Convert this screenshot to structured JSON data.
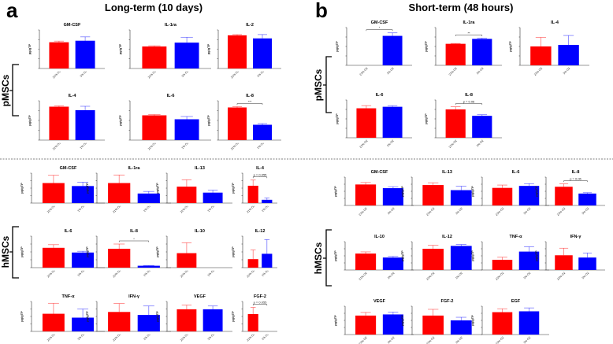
{
  "panel_a": {
    "letter": "a",
    "title": "Long-term (10 days)"
  },
  "panel_b": {
    "letter": "b",
    "title": "Short-term (48 hours)"
  },
  "groups": {
    "pmsc": "pMSCs",
    "hmsc": "hMSCs"
  },
  "colors": {
    "normoxia": "#ff0000",
    "hypoxia": "#0000ff"
  },
  "chart_data": {
    "type": "bar",
    "note": "values are fractions of each subplot's y-axis maximum (tick labels illegible)",
    "ylabel": "pg/gTP",
    "categories_a": [
      "21% O₂",
      "1% O₂"
    ],
    "categories_b": [
      "21% O2",
      "1% O2"
    ],
    "ylim": [
      0,
      1
    ],
    "panels": [
      {
        "panel": "a",
        "group": "pMSCs",
        "title": "GM-CSF",
        "values": [
          0.68,
          0.72
        ],
        "errors": [
          0.03,
          0.1
        ],
        "sig": ""
      },
      {
        "panel": "a",
        "group": "pMSCs",
        "title": "IL-1ra",
        "values": [
          0.57,
          0.67
        ],
        "errors": [
          0.02,
          0.14
        ],
        "sig": ""
      },
      {
        "panel": "a",
        "group": "pMSCs",
        "title": "IL-2",
        "values": [
          0.86,
          0.78
        ],
        "errors": [
          0.02,
          0.1
        ],
        "sig": ""
      },
      {
        "panel": "a",
        "group": "pMSCs",
        "title": "IL-4",
        "values": [
          0.85,
          0.76
        ],
        "errors": [
          0.02,
          0.1
        ],
        "sig": ""
      },
      {
        "panel": "a",
        "group": "pMSCs",
        "title": "IL-6",
        "values": [
          0.63,
          0.53
        ],
        "errors": [
          0.02,
          0.07
        ],
        "sig": ""
      },
      {
        "panel": "a",
        "group": "pMSCs",
        "title": "IL-8",
        "values": [
          0.83,
          0.39
        ],
        "errors": [
          0.02,
          0.03
        ],
        "sig": "***"
      },
      {
        "panel": "b",
        "group": "pMSCs",
        "title": "GM-CSF",
        "values": [
          0.0,
          0.78
        ],
        "errors": [
          0,
          0.08
        ],
        "sig": "*"
      },
      {
        "panel": "b",
        "group": "pMSCs",
        "title": "IL-1ra",
        "values": [
          0.57,
          0.7
        ],
        "errors": [
          0.01,
          0.02
        ],
        "sig": "**"
      },
      {
        "panel": "b",
        "group": "pMSCs",
        "title": "IL-4",
        "values": [
          0.5,
          0.54
        ],
        "errors": [
          0.24,
          0.25
        ],
        "sig": ""
      },
      {
        "panel": "b",
        "group": "pMSCs",
        "title": "IL-6",
        "values": [
          0.78,
          0.82
        ],
        "errors": [
          0.07,
          0.03
        ],
        "sig": ""
      },
      {
        "panel": "b",
        "group": "pMSCs",
        "title": "IL-8",
        "values": [
          0.75,
          0.58
        ],
        "errors": [
          0.07,
          0.03
        ],
        "sig": "p = 0.06"
      },
      {
        "panel": "a",
        "group": "hMSCs",
        "title": "GM-CSF",
        "values": [
          0.67,
          0.57
        ],
        "errors": [
          0.26,
          0.13
        ],
        "sig": ""
      },
      {
        "panel": "a",
        "group": "hMSCs",
        "title": "IL-1ra",
        "values": [
          0.67,
          0.32
        ],
        "errors": [
          0.27,
          0.07
        ],
        "sig": ""
      },
      {
        "panel": "a",
        "group": "hMSCs",
        "title": "IL-13",
        "values": [
          0.55,
          0.35
        ],
        "errors": [
          0.23,
          0.08
        ],
        "sig": ""
      },
      {
        "panel": "a",
        "group": "hMSCs",
        "title": "IL-4",
        "values": [
          0.58,
          0.11
        ],
        "errors": [
          0.19,
          0.06
        ],
        "sig": "p = 0.055"
      },
      {
        "panel": "a",
        "group": "hMSCs",
        "title": "IL-6",
        "values": [
          0.63,
          0.48
        ],
        "errors": [
          0.1,
          0.04
        ],
        "sig": ""
      },
      {
        "panel": "a",
        "group": "hMSCs",
        "title": "IL-8",
        "values": [
          0.6,
          0.06
        ],
        "errors": [
          0.15,
          0.01
        ],
        "sig": "*"
      },
      {
        "panel": "a",
        "group": "hMSCs",
        "title": "IL-10",
        "values": [
          0.46,
          0.0
        ],
        "errors": [
          0.33,
          0
        ],
        "sig": ""
      },
      {
        "panel": "a",
        "group": "hMSCs",
        "title": "IL-12",
        "values": [
          0.27,
          0.44
        ],
        "errors": [
          0.29,
          0.45
        ],
        "sig": ""
      },
      {
        "panel": "a",
        "group": "hMSCs",
        "title": "TNF-α",
        "values": [
          0.59,
          0.46
        ],
        "errors": [
          0.35,
          0.29
        ],
        "sig": ""
      },
      {
        "panel": "a",
        "group": "hMSCs",
        "title": "IFN-γ",
        "values": [
          0.65,
          0.55
        ],
        "errors": [
          0.28,
          0.3
        ],
        "sig": ""
      },
      {
        "panel": "a",
        "group": "hMSCs",
        "title": "VEGF",
        "values": [
          0.74,
          0.74
        ],
        "errors": [
          0.14,
          0.11
        ],
        "sig": ""
      },
      {
        "panel": "a",
        "group": "hMSCs",
        "title": "FGF-2",
        "values": [
          0.58,
          0.0
        ],
        "errors": [
          0.22,
          0
        ],
        "sig": "p = 0.055"
      },
      {
        "panel": "b",
        "group": "hMSCs",
        "title": "GM-CSF",
        "values": [
          0.74,
          0.61
        ],
        "errors": [
          0.07,
          0.05
        ],
        "sig": ""
      },
      {
        "panel": "b",
        "group": "hMSCs",
        "title": "IL-13",
        "values": [
          0.72,
          0.54
        ],
        "errors": [
          0.08,
          0.14
        ],
        "sig": ""
      },
      {
        "panel": "b",
        "group": "hMSCs",
        "title": "IL-6",
        "values": [
          0.62,
          0.69
        ],
        "errors": [
          0.1,
          0.08
        ],
        "sig": ""
      },
      {
        "panel": "b",
        "group": "hMSCs",
        "title": "IL-8",
        "values": [
          0.66,
          0.42
        ],
        "errors": [
          0.1,
          0.03
        ],
        "sig": "p = 0.06"
      },
      {
        "panel": "b",
        "group": "hMSCs",
        "title": "IL-10",
        "values": [
          0.58,
          0.44
        ],
        "errors": [
          0.06,
          0.04
        ],
        "sig": ""
      },
      {
        "panel": "b",
        "group": "hMSCs",
        "title": "IL-12",
        "values": [
          0.75,
          0.85
        ],
        "errors": [
          0.12,
          0.05
        ],
        "sig": ""
      },
      {
        "panel": "b",
        "group": "hMSCs",
        "title": "TNF-α",
        "values": [
          0.36,
          0.65
        ],
        "errors": [
          0.09,
          0.17
        ],
        "sig": ""
      },
      {
        "panel": "b",
        "group": "hMSCs",
        "title": "IFN-γ",
        "values": [
          0.52,
          0.44
        ],
        "errors": [
          0.25,
          0.16
        ],
        "sig": ""
      },
      {
        "panel": "b",
        "group": "hMSCs",
        "title": "VEGF",
        "values": [
          0.67,
          0.71
        ],
        "errors": [
          0.11,
          0.08
        ],
        "sig": ""
      },
      {
        "panel": "b",
        "group": "hMSCs",
        "title": "FGF-2",
        "values": [
          0.67,
          0.5
        ],
        "errors": [
          0.22,
          0.11
        ],
        "sig": ""
      },
      {
        "panel": "b",
        "group": "hMSCs",
        "title": "EGF",
        "values": [
          0.79,
          0.82
        ],
        "errors": [
          0.12,
          0.12
        ],
        "sig": ""
      }
    ]
  }
}
